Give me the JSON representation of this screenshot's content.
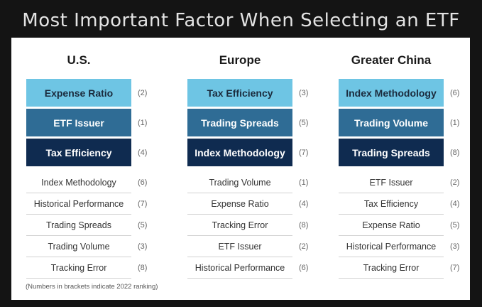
{
  "title": "Most Important Factor When Selecting an ETF",
  "regions": [
    {
      "name": "U.S.",
      "top": [
        {
          "label": "Expense Ratio",
          "rank": "(2)"
        },
        {
          "label": "ETF Issuer",
          "rank": "(1)"
        },
        {
          "label": "Tax Efficiency",
          "rank": "(4)"
        }
      ],
      "others": [
        {
          "label": "Index Methodology",
          "rank": "(6)"
        },
        {
          "label": "Historical Performance",
          "rank": "(7)"
        },
        {
          "label": "Trading Spreads",
          "rank": "(5)"
        },
        {
          "label": "Trading Volume",
          "rank": "(3)"
        },
        {
          "label": "Tracking Error",
          "rank": "(8)"
        }
      ]
    },
    {
      "name": "Europe",
      "top": [
        {
          "label": "Tax Efficiency",
          "rank": "(3)"
        },
        {
          "label": "Trading Spreads",
          "rank": "(5)"
        },
        {
          "label": "Index Methodology",
          "rank": "(7)"
        }
      ],
      "others": [
        {
          "label": "Trading Volume",
          "rank": "(1)"
        },
        {
          "label": "Expense Ratio",
          "rank": "(4)"
        },
        {
          "label": "Tracking Error",
          "rank": "(8)"
        },
        {
          "label": "ETF Issuer",
          "rank": "(2)"
        },
        {
          "label": "Historical Performance",
          "rank": "(6)"
        }
      ]
    },
    {
      "name": "Greater China",
      "top": [
        {
          "label": "Index Methodology",
          "rank": "(6)"
        },
        {
          "label": "Trading Volume",
          "rank": "(1)"
        },
        {
          "label": "Trading Spreads",
          "rank": "(8)"
        }
      ],
      "others": [
        {
          "label": "ETF Issuer",
          "rank": "(2)"
        },
        {
          "label": "Tax Efficiency",
          "rank": "(4)"
        },
        {
          "label": "Expense Ratio",
          "rank": "(5)"
        },
        {
          "label": "Historical Performance",
          "rank": "(3)"
        },
        {
          "label": "Tracking Error",
          "rank": "(7)"
        }
      ]
    }
  ],
  "footnote": "(Numbers in brackets indicate 2022 ranking)",
  "colors": {
    "rank1": "#6ec5e4",
    "rank2": "#2f6c95",
    "rank3": "#0f2b50"
  }
}
